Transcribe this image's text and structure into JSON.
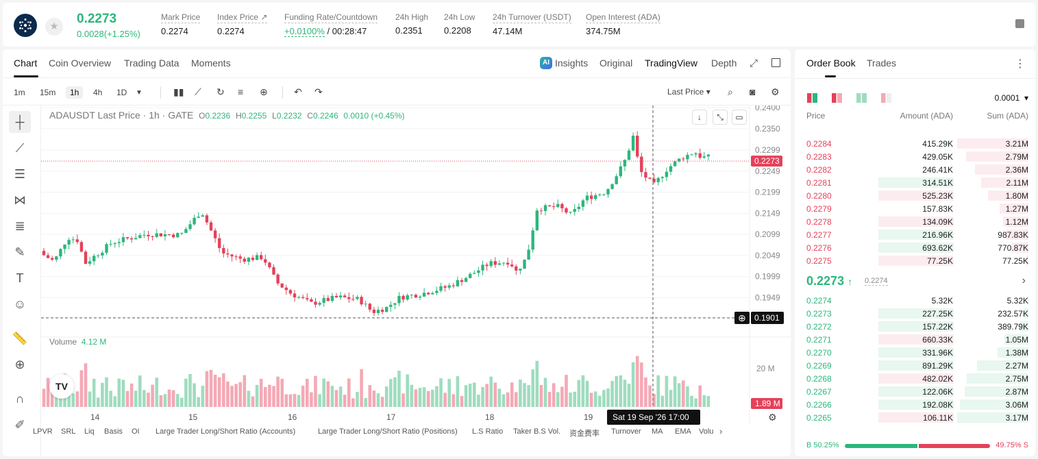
{
  "header": {
    "price": "0.2273",
    "change": "0.0028(+1.25%)",
    "stats": [
      {
        "label": "Mark Price",
        "value": "0.2274"
      },
      {
        "label": "Index Price ↗",
        "value": "0.2274"
      },
      {
        "label": "Funding Rate/Countdown",
        "value_green": "+0.0100%",
        "value": " / 00:28:47"
      },
      {
        "label": "24h High",
        "value": "0.2351"
      },
      {
        "label": "24h Low",
        "value": "0.2208"
      },
      {
        "label": "24h Turnover (USDT)",
        "value": "47.14M"
      },
      {
        "label": "Open Interest (ADA)",
        "value": "374.75M"
      }
    ]
  },
  "tabs": {
    "chart": "Chart",
    "overview": "Coin Overview",
    "data": "Trading Data",
    "moments": "Moments",
    "insights": "Insights",
    "original": "Original",
    "tradingview": "TradingView",
    "depth": "Depth"
  },
  "toolbar": {
    "intervals": [
      "1m",
      "15m",
      "1h",
      "4h",
      "1D"
    ],
    "active_interval": "1h",
    "price_type": "Last Price"
  },
  "legend": {
    "symbol": "ADAUSDT Last Price · 1h · GATE",
    "o_label": "O",
    "o": "0.2236",
    "h_label": "H",
    "h": "0.2255",
    "l_label": "L",
    "l": "0.2232",
    "c_label": "C",
    "c": "0.2246",
    "chg": "0.0010 (+0.45%)"
  },
  "volume": {
    "label": "Volume",
    "value": "4.12 M",
    "axis_label": "20 M",
    "last_tag": "1.89 M"
  },
  "chart_data": {
    "type": "candlestick",
    "price_ticks": [
      "0.2400",
      "0.2350",
      "0.2299",
      "0.2249",
      "0.2199",
      "0.2149",
      "0.2099",
      "0.2049",
      "0.1999",
      "0.1949"
    ],
    "last_price_tag": "0.2273",
    "crosshair_price": "0.1901",
    "crosshair_time": "Sat 19 Sep '26   17:00",
    "x_ticks": [
      "14",
      "15",
      "16",
      "17",
      "18",
      "19"
    ],
    "colors": {
      "up": "#2db67c",
      "down": "#e5415a",
      "vol_up": "#9fdcbf",
      "vol_down": "#f4a9b5"
    }
  },
  "indicators": [
    "LPVR",
    "SRL",
    "Liq",
    "Basis",
    "OI",
    "Large Trader Long/Short Ratio (Accounts)",
    "Large Trader Long/Short Ratio (Positions)",
    "L.S Ratio",
    "Taker B.S Vol.",
    "资金费率",
    "Turnover",
    "MA",
    "EMA",
    "Volu"
  ],
  "orderbook": {
    "tab": "Order Book",
    "trades_tab": "Trades",
    "precision": "0.0001",
    "headers": {
      "price": "Price",
      "amount": "Amount (ADA)",
      "sum": "Sum (ADA)"
    },
    "asks": [
      {
        "price": "0.2284",
        "amount": "415.29K",
        "sum": "3.21M",
        "bar": 0.99,
        "abar": 0
      },
      {
        "price": "0.2283",
        "amount": "429.05K",
        "sum": "2.79M",
        "bar": 0.87,
        "abar": 0
      },
      {
        "price": "0.2282",
        "amount": "246.41K",
        "sum": "2.36M",
        "bar": 0.74,
        "abar": 0
      },
      {
        "price": "0.2281",
        "amount": "314.51K",
        "sum": "2.11M",
        "bar": 0.66,
        "abar": 0.58,
        "ahl": "green"
      },
      {
        "price": "0.2280",
        "amount": "525.23K",
        "sum": "1.80M",
        "bar": 0.56,
        "abar": 0.58,
        "ahl": "red"
      },
      {
        "price": "0.2279",
        "amount": "157.83K",
        "sum": "1.27M",
        "bar": 0.4,
        "abar": 0
      },
      {
        "price": "0.2278",
        "amount": "134.09K",
        "sum": "1.12M",
        "bar": 0.35,
        "abar": 0.58,
        "ahl": "red"
      },
      {
        "price": "0.2277",
        "amount": "216.96K",
        "sum": "987.83K",
        "bar": 0.31,
        "abar": 0.58,
        "ahl": "green"
      },
      {
        "price": "0.2276",
        "amount": "693.62K",
        "sum": "770.87K",
        "bar": 0.24,
        "abar": 0.58,
        "ahl": "green"
      },
      {
        "price": "0.2275",
        "amount": "77.25K",
        "sum": "77.25K",
        "bar": 0.03,
        "abar": 0.58,
        "ahl": "red"
      }
    ],
    "mid": {
      "price": "0.2273",
      "arrow": "↑",
      "mark": "0.2274"
    },
    "bids": [
      {
        "price": "0.2274",
        "amount": "5.32K",
        "sum": "5.32K",
        "bar": 0.01,
        "abar": 0
      },
      {
        "price": "0.2273",
        "amount": "227.25K",
        "sum": "232.57K",
        "bar": 0.07,
        "abar": 0.58,
        "ahl": "green"
      },
      {
        "price": "0.2272",
        "amount": "157.22K",
        "sum": "389.79K",
        "bar": 0.12,
        "abar": 0.58,
        "ahl": "green"
      },
      {
        "price": "0.2271",
        "amount": "660.33K",
        "sum": "1.05M",
        "bar": 0.33,
        "abar": 0.58,
        "ahl": "red"
      },
      {
        "price": "0.2270",
        "amount": "331.96K",
        "sum": "1.38M",
        "bar": 0.43,
        "abar": 0.58,
        "ahl": "green"
      },
      {
        "price": "0.2269",
        "amount": "891.29K",
        "sum": "2.27M",
        "bar": 0.71,
        "abar": 0.58,
        "ahl": "green"
      },
      {
        "price": "0.2268",
        "amount": "482.02K",
        "sum": "2.75M",
        "bar": 0.86,
        "abar": 0.58,
        "ahl": "red"
      },
      {
        "price": "0.2267",
        "amount": "122.06K",
        "sum": "2.87M",
        "bar": 0.89,
        "abar": 0.58,
        "ahl": "green"
      },
      {
        "price": "0.2266",
        "amount": "192.08K",
        "sum": "3.06M",
        "bar": 0.95,
        "abar": 0.58,
        "ahl": "green"
      },
      {
        "price": "0.2265",
        "amount": "106.11K",
        "sum": "3.17M",
        "bar": 0.99,
        "abar": 0.58,
        "ahl": "red"
      }
    ],
    "ratio": {
      "buy": "50.25%",
      "sell": "49.75%",
      "buy_frac": 0.5025,
      "b_label": "B",
      "s_label": "S"
    }
  }
}
